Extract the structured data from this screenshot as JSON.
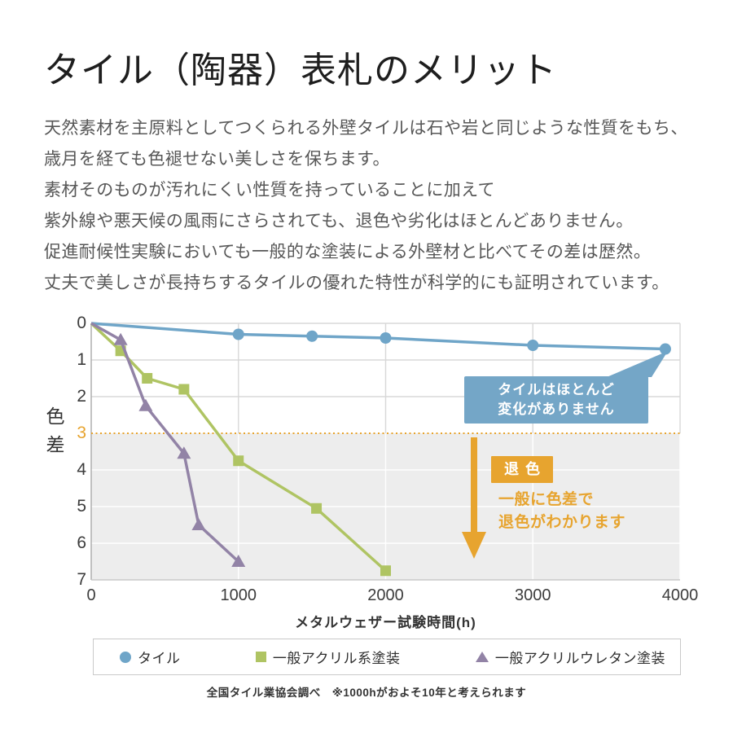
{
  "page": {
    "title": "タイル（陶器）表札のメリット",
    "paragraph_lines": [
      "天然素材を主原料としてつくられる外壁タイルは石や岩と同じような性質をもち、",
      "歳月を経ても色褪せない美しさを保ちます。",
      "素材そのものが汚れにくい性質を持っていることに加えて",
      "紫外線や悪天候の風雨にさらされても、退色や劣化はほとんどありません。",
      "促進耐候性実験においても一般的な塗装による外壁材と比べてその差は歴然。",
      "丈夫で美しさが長持ちするタイルの優れた特性が科学的にも証明されています。"
    ]
  },
  "chart_data": {
    "type": "line",
    "title": "",
    "xlabel": "メタルウェザー試験時間(h)",
    "ylabel": "色差",
    "xlim": [
      0,
      4000
    ],
    "ylim": [
      0,
      7
    ],
    "axis_inverted": true,
    "grid": true,
    "legend_position": "bottom",
    "x_ticks": [
      0,
      1000,
      2000,
      3000,
      4000
    ],
    "y_ticks": [
      0,
      1,
      2,
      3,
      4,
      5,
      6,
      7
    ],
    "series": [
      {
        "name": "タイル",
        "color": "#6fa5c8",
        "marker": "circle",
        "points": [
          [
            0,
            0
          ],
          [
            1000,
            0.3
          ],
          [
            1500,
            0.35
          ],
          [
            2000,
            0.4
          ],
          [
            3000,
            0.6
          ],
          [
            3900,
            0.7
          ]
        ]
      },
      {
        "name": "一般アクリル系塗装",
        "color": "#afc463",
        "marker": "square",
        "points": [
          [
            0,
            0
          ],
          [
            200,
            0.75
          ],
          [
            380,
            1.5
          ],
          [
            630,
            1.8
          ],
          [
            1000,
            3.75
          ],
          [
            1530,
            5.05
          ],
          [
            2000,
            6.75
          ]
        ]
      },
      {
        "name": "一般アクリルウレタン塗装",
        "color": "#9283a6",
        "marker": "triangle",
        "points": [
          [
            0,
            0
          ],
          [
            200,
            0.45
          ],
          [
            370,
            2.25
          ],
          [
            630,
            3.55
          ],
          [
            730,
            5.5
          ],
          [
            1000,
            6.5
          ]
        ]
      }
    ],
    "threshold_line": {
      "y": 3,
      "color": "#e7a42f",
      "style": "dotted"
    },
    "shaded_region": {
      "y_from": 3,
      "y_to": 7,
      "color": "#ededed"
    },
    "annotations": {
      "callout_lines": [
        "タイルはほとんど",
        "変化がありません"
      ],
      "callout_bg": "#74a6c7",
      "fade_badge": "退色",
      "fade_badge_bg": "#e7a42f",
      "fade_note_lines": [
        "一般に色差で",
        "退色がわかります"
      ],
      "fade_note_color": "#e7a42f",
      "arrow_color": "#e7a42f"
    },
    "footnote": "全国タイル業協会調べ　※1000hがおよそ10年と考えられます"
  }
}
